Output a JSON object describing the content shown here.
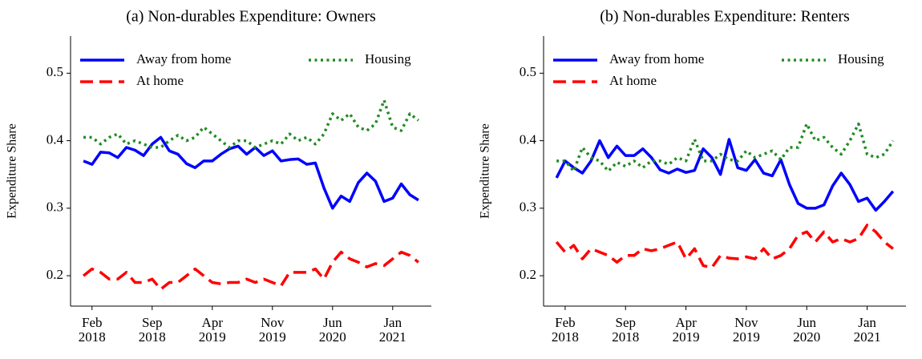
{
  "chart_data": [
    {
      "type": "line",
      "title": "(a) Non-durables Expenditure: Owners",
      "y_label": "Expenditure Share",
      "x": [
        "2018-01",
        "2018-02",
        "2018-03",
        "2018-04",
        "2018-05",
        "2018-06",
        "2018-07",
        "2018-08",
        "2018-09",
        "2018-10",
        "2018-11",
        "2018-12",
        "2019-01",
        "2019-02",
        "2019-03",
        "2019-04",
        "2019-05",
        "2019-06",
        "2019-07",
        "2019-08",
        "2019-09",
        "2019-10",
        "2019-11",
        "2019-12",
        "2020-01",
        "2020-02",
        "2020-03",
        "2020-04",
        "2020-05",
        "2020-06",
        "2020-07",
        "2020-08",
        "2020-09",
        "2020-10",
        "2020-11",
        "2020-12",
        "2021-01",
        "2021-02",
        "2021-03",
        "2021-04"
      ],
      "series": [
        {
          "name": "Away from home",
          "color": "#0000ff",
          "dash": "solid",
          "values": [
            0.37,
            0.365,
            0.383,
            0.382,
            0.375,
            0.39,
            0.386,
            0.378,
            0.395,
            0.405,
            0.385,
            0.38,
            0.366,
            0.36,
            0.37,
            0.37,
            0.38,
            0.388,
            0.392,
            0.38,
            0.39,
            0.378,
            0.385,
            0.37,
            0.372,
            0.373,
            0.365,
            0.367,
            0.33,
            0.3,
            0.318,
            0.31,
            0.338,
            0.352,
            0.34,
            0.31,
            0.315,
            0.336,
            0.32,
            0.312
          ]
        },
        {
          "name": "Housing",
          "color": "#228b22",
          "dash": "dotted",
          "values": [
            0.405,
            0.405,
            0.395,
            0.405,
            0.41,
            0.395,
            0.4,
            0.395,
            0.39,
            0.39,
            0.4,
            0.408,
            0.4,
            0.405,
            0.42,
            0.41,
            0.4,
            0.39,
            0.4,
            0.4,
            0.39,
            0.395,
            0.4,
            0.395,
            0.41,
            0.4,
            0.405,
            0.395,
            0.41,
            0.44,
            0.43,
            0.44,
            0.42,
            0.415,
            0.425,
            0.46,
            0.42,
            0.415,
            0.44,
            0.43
          ]
        },
        {
          "name": "At home",
          "color": "#ff0000",
          "dash": "dashed",
          "values": [
            0.2,
            0.21,
            0.205,
            0.195,
            0.195,
            0.205,
            0.19,
            0.19,
            0.195,
            0.18,
            0.19,
            0.19,
            0.2,
            0.21,
            0.2,
            0.19,
            0.188,
            0.19,
            0.19,
            0.195,
            0.19,
            0.195,
            0.19,
            0.185,
            0.205,
            0.205,
            0.205,
            0.21,
            0.195,
            0.22,
            0.235,
            0.225,
            0.22,
            0.213,
            0.218,
            0.215,
            0.225,
            0.235,
            0.23,
            0.22
          ]
        }
      ],
      "xlim": [
        "2017-11-16",
        "2021-05-16"
      ],
      "ylim": [
        0.155,
        0.555
      ],
      "xticks": [
        {
          "value": "2018-02",
          "label": "Feb\n2018"
        },
        {
          "value": "2018-09",
          "label": "Sep\n2018"
        },
        {
          "value": "2019-04",
          "label": "Apr\n2019"
        },
        {
          "value": "2019-11",
          "label": "Nov\n2019"
        },
        {
          "value": "2020-06",
          "label": "Jun\n2020"
        },
        {
          "value": "2021-01",
          "label": "Jan\n2021"
        }
      ],
      "yticks": [
        0.2,
        0.3,
        0.4,
        0.5
      ],
      "grid": false,
      "legend": "upper left"
    },
    {
      "type": "line",
      "title": "(b) Non-durables Expenditure: Renters",
      "y_label": "Expenditure Share",
      "x": [
        "2018-01",
        "2018-02",
        "2018-03",
        "2018-04",
        "2018-05",
        "2018-06",
        "2018-07",
        "2018-08",
        "2018-09",
        "2018-10",
        "2018-11",
        "2018-12",
        "2019-01",
        "2019-02",
        "2019-03",
        "2019-04",
        "2019-05",
        "2019-06",
        "2019-07",
        "2019-08",
        "2019-09",
        "2019-10",
        "2019-11",
        "2019-12",
        "2020-01",
        "2020-02",
        "2020-03",
        "2020-04",
        "2020-05",
        "2020-06",
        "2020-07",
        "2020-08",
        "2020-09",
        "2020-10",
        "2020-11",
        "2020-12",
        "2021-01",
        "2021-02",
        "2021-03",
        "2021-04"
      ],
      "series": [
        {
          "name": "Away from home",
          "color": "#0000ff",
          "dash": "solid",
          "values": [
            0.345,
            0.37,
            0.36,
            0.352,
            0.37,
            0.4,
            0.375,
            0.392,
            0.378,
            0.378,
            0.388,
            0.375,
            0.357,
            0.352,
            0.358,
            0.353,
            0.356,
            0.388,
            0.375,
            0.35,
            0.402,
            0.36,
            0.356,
            0.372,
            0.352,
            0.348,
            0.372,
            0.335,
            0.307,
            0.3,
            0.3,
            0.305,
            0.333,
            0.352,
            0.335,
            0.31,
            0.315,
            0.297,
            0.31,
            0.325
          ]
        },
        {
          "name": "Housing",
          "color": "#228b22",
          "dash": "dotted",
          "values": [
            0.37,
            0.37,
            0.355,
            0.39,
            0.375,
            0.37,
            0.355,
            0.368,
            0.362,
            0.37,
            0.36,
            0.37,
            0.37,
            0.365,
            0.375,
            0.37,
            0.402,
            0.37,
            0.37,
            0.38,
            0.372,
            0.37,
            0.385,
            0.375,
            0.38,
            0.385,
            0.372,
            0.39,
            0.39,
            0.425,
            0.4,
            0.405,
            0.39,
            0.38,
            0.4,
            0.425,
            0.38,
            0.375,
            0.38,
            0.4
          ]
        },
        {
          "name": "At home",
          "color": "#ff0000",
          "dash": "dashed",
          "values": [
            0.25,
            0.235,
            0.245,
            0.225,
            0.24,
            0.235,
            0.23,
            0.22,
            0.23,
            0.23,
            0.24,
            0.237,
            0.24,
            0.245,
            0.25,
            0.225,
            0.24,
            0.215,
            0.212,
            0.23,
            0.226,
            0.225,
            0.228,
            0.225,
            0.24,
            0.225,
            0.23,
            0.24,
            0.26,
            0.265,
            0.25,
            0.265,
            0.25,
            0.255,
            0.25,
            0.255,
            0.275,
            0.265,
            0.25,
            0.24
          ]
        }
      ],
      "xlim": [
        "2017-11-16",
        "2021-05-16"
      ],
      "ylim": [
        0.155,
        0.555
      ],
      "xticks": [
        {
          "value": "2018-02",
          "label": "Feb\n2018"
        },
        {
          "value": "2018-09",
          "label": "Sep\n2018"
        },
        {
          "value": "2019-04",
          "label": "Apr\n2019"
        },
        {
          "value": "2019-11",
          "label": "Nov\n2019"
        },
        {
          "value": "2020-06",
          "label": "Jun\n2020"
        },
        {
          "value": "2021-01",
          "label": "Jan\n2021"
        }
      ],
      "yticks": [
        0.2,
        0.3,
        0.4,
        0.5
      ],
      "grid": false,
      "legend": "upper left"
    }
  ]
}
